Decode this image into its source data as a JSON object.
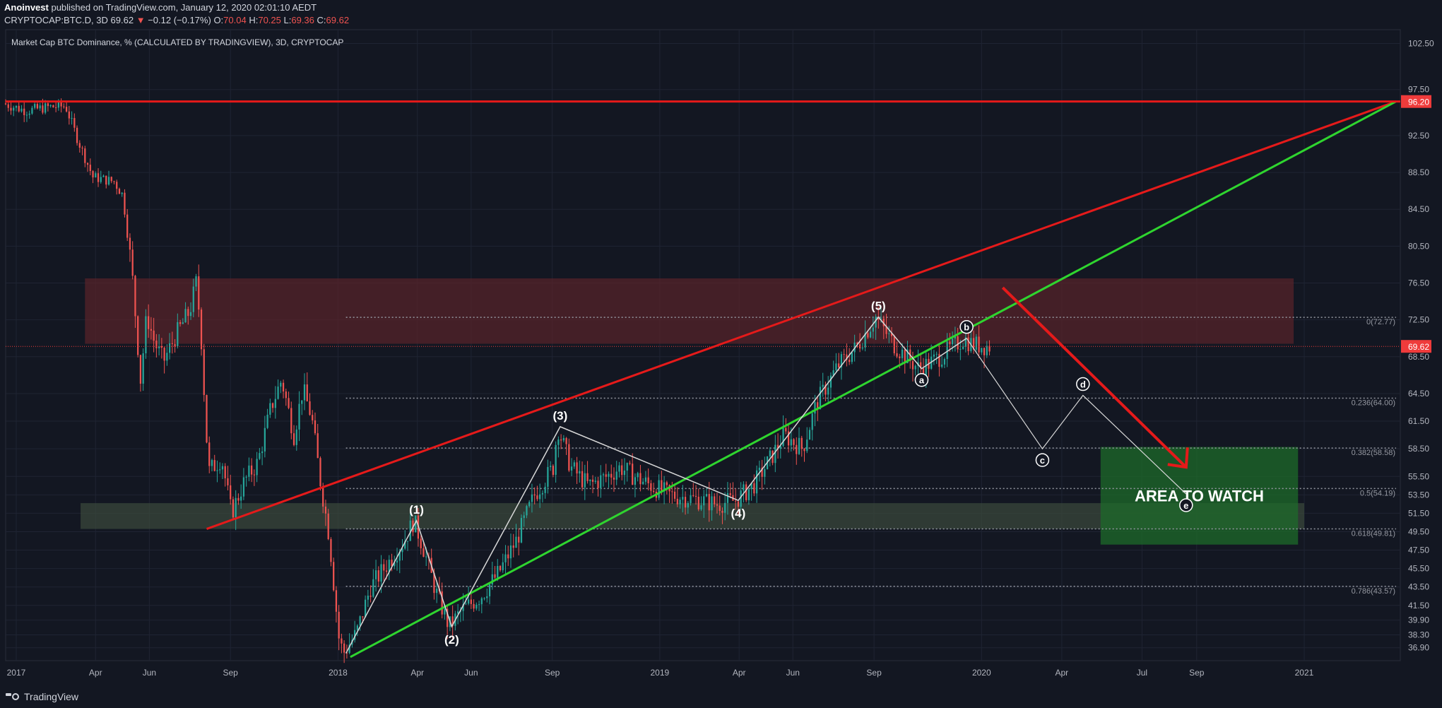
{
  "header": {
    "author": "Anoinvest",
    "published_text": "published on TradingView.com, January 12, 2020 02:01:10 AEDT",
    "symbol": "CRYPTOCAP:BTC.D, 3D",
    "last": "69.62",
    "change_arrow": "▼",
    "change": "−0.12 (−0.17%)",
    "o_label": "O:",
    "o_value": "70.04",
    "h_label": "H:",
    "h_value": "70.25",
    "l_label": "L:",
    "l_value": "69.36",
    "c_label": "C:",
    "c_value": "69.62"
  },
  "footer": {
    "brand": "TradingView"
  },
  "colors": {
    "background": "#131722",
    "grid": "#1f2433",
    "up_candle": "#26a69a",
    "down_candle": "#ef5350",
    "red_line": "#e51a1a",
    "green_line": "#2fd52f",
    "price_tag": "#ef3b3b"
  },
  "chart_data": {
    "type": "candlestick",
    "title": "Market Cap BTC Dominance, % (CALCULATED BY TRADINGVIEW), 3D, CRYPTOCAP",
    "interval": "3D",
    "x_axis": {
      "range": [
        "2016-12-20",
        "2021-04-20"
      ],
      "ticks": [
        {
          "date": "2017-01-01",
          "label": "2017"
        },
        {
          "date": "2017-04-01",
          "label": "Apr"
        },
        {
          "date": "2017-06-01",
          "label": "Jun"
        },
        {
          "date": "2017-09-01",
          "label": "Sep"
        },
        {
          "date": "2018-01-01",
          "label": "2018"
        },
        {
          "date": "2018-04-01",
          "label": "Apr"
        },
        {
          "date": "2018-06-01",
          "label": "Jun"
        },
        {
          "date": "2018-09-01",
          "label": "Sep"
        },
        {
          "date": "2019-01-01",
          "label": "2019"
        },
        {
          "date": "2019-04-01",
          "label": "Apr"
        },
        {
          "date": "2019-06-01",
          "label": "Jun"
        },
        {
          "date": "2019-09-01",
          "label": "Sep"
        },
        {
          "date": "2020-01-01",
          "label": "2020"
        },
        {
          "date": "2020-04-01",
          "label": "Apr"
        },
        {
          "date": "2020-07-01",
          "label": "Jul"
        },
        {
          "date": "2020-09-01",
          "label": "Sep"
        },
        {
          "date": "2021-01-01",
          "label": "2021"
        }
      ]
    },
    "y_axis": {
      "range": [
        35.5,
        104.0
      ],
      "ticks": [
        "102.50",
        "97.50",
        "92.50",
        "88.50",
        "84.50",
        "80.50",
        "76.50",
        "72.50",
        "68.50",
        "64.50",
        "61.50",
        "58.50",
        "55.50",
        "53.50",
        "51.50",
        "49.50",
        "47.50",
        "45.50",
        "43.50",
        "41.50",
        "39.90",
        "38.30",
        "36.90"
      ]
    },
    "price_path": [
      [
        "2016-12-20",
        96.0
      ],
      [
        "2017-01-15",
        95.2
      ],
      [
        "2017-02-10",
        95.6
      ],
      [
        "2017-03-01",
        95.7
      ],
      [
        "2017-03-15",
        92.0
      ],
      [
        "2017-04-01",
        88.0
      ],
      [
        "2017-04-25",
        87.5
      ],
      [
        "2017-05-05",
        86.0
      ],
      [
        "2017-05-15",
        78.0
      ],
      [
        "2017-05-25",
        66.0
      ],
      [
        "2017-06-01",
        73.0
      ],
      [
        "2017-06-10",
        70.0
      ],
      [
        "2017-06-20",
        68.0
      ],
      [
        "2017-07-05",
        71.0
      ],
      [
        "2017-07-20",
        73.5
      ],
      [
        "2017-07-27",
        76.5
      ],
      [
        "2017-08-01",
        72.0
      ],
      [
        "2017-08-10",
        56.0
      ],
      [
        "2017-08-25",
        57.5
      ],
      [
        "2017-09-05",
        51.5
      ],
      [
        "2017-09-20",
        55.0
      ],
      [
        "2017-10-05",
        57.0
      ],
      [
        "2017-10-20",
        63.0
      ],
      [
        "2017-11-01",
        66.0
      ],
      [
        "2017-11-15",
        60.0
      ],
      [
        "2017-11-25",
        65.0
      ],
      [
        "2017-12-05",
        62.0
      ],
      [
        "2017-12-15",
        55.0
      ],
      [
        "2017-12-25",
        49.0
      ],
      [
        "2018-01-05",
        38.0
      ],
      [
        "2018-01-10",
        36.3
      ],
      [
        "2018-01-25",
        38.5
      ],
      [
        "2018-02-10",
        43.5
      ],
      [
        "2018-03-01",
        46.0
      ],
      [
        "2018-03-20",
        48.5
      ],
      [
        "2018-03-31",
        50.7
      ],
      [
        "2018-04-10",
        48.0
      ],
      [
        "2018-04-25",
        43.0
      ],
      [
        "2018-05-10",
        39.2
      ],
      [
        "2018-05-25",
        41.0
      ],
      [
        "2018-06-15",
        42.5
      ],
      [
        "2018-07-05",
        45.0
      ],
      [
        "2018-07-25",
        48.5
      ],
      [
        "2018-08-15",
        53.5
      ],
      [
        "2018-09-05",
        56.5
      ],
      [
        "2018-09-10",
        60.9
      ],
      [
        "2018-09-25",
        56.5
      ],
      [
        "2018-10-15",
        54.5
      ],
      [
        "2018-11-05",
        55.5
      ],
      [
        "2018-11-20",
        56.5
      ],
      [
        "2018-12-15",
        55.0
      ],
      [
        "2019-01-15",
        53.5
      ],
      [
        "2019-02-15",
        53.0
      ],
      [
        "2019-03-10",
        52.5
      ],
      [
        "2019-03-31",
        52.9
      ],
      [
        "2019-04-20",
        54.5
      ],
      [
        "2019-05-10",
        57.5
      ],
      [
        "2019-05-25",
        60.0
      ],
      [
        "2019-06-15",
        58.5
      ],
      [
        "2019-07-01",
        63.5
      ],
      [
        "2019-07-25",
        67.5
      ],
      [
        "2019-08-15",
        69.5
      ],
      [
        "2019-09-06",
        72.8
      ],
      [
        "2019-09-25",
        70.0
      ],
      [
        "2019-10-10",
        68.5
      ],
      [
        "2019-10-25",
        67.2
      ],
      [
        "2019-11-10",
        68.0
      ],
      [
        "2019-11-25",
        69.0
      ],
      [
        "2019-12-15",
        70.5
      ],
      [
        "2019-12-25",
        69.8
      ],
      [
        "2020-01-12",
        69.62
      ]
    ],
    "last_price": "69.62",
    "resistance_level": "96.20",
    "zones": [
      {
        "kind": "resistance",
        "x": [
          "2017-03-20",
          "2020-12-20"
        ],
        "y": [
          69.9,
          77.0
        ],
        "color": "#5a2329"
      },
      {
        "kind": "support",
        "x": [
          "2017-03-15",
          "2021-01-01"
        ],
        "y": [
          49.8,
          52.6
        ],
        "color": "#3c4a3c"
      },
      {
        "kind": "target",
        "label": "AREA TO WATCH",
        "x": [
          "2020-05-15",
          "2020-12-25"
        ],
        "y": [
          48.1,
          58.7
        ],
        "color": "#1e6b2a"
      }
    ],
    "trendlines": [
      {
        "name": "red-upper-channel",
        "color": "#e51a1a",
        "points": [
          [
            "2017-08-05",
            49.8
          ],
          [
            "2021-04-15",
            96.2
          ]
        ]
      },
      {
        "name": "green-lower-channel",
        "color": "#2fd52f",
        "points": [
          [
            "2018-01-15",
            35.9
          ],
          [
            "2021-04-15",
            96.2
          ]
        ]
      },
      {
        "name": "red-horizontal-resistance",
        "color": "#e51a1a",
        "points": [
          [
            "2016-12-20",
            96.2
          ],
          [
            "2021-04-20",
            96.2
          ]
        ]
      }
    ],
    "elliott_waves": [
      {
        "label": "(1)",
        "date": "2018-03-31",
        "value": 50.7,
        "pos": "above"
      },
      {
        "label": "(2)",
        "date": "2018-05-10",
        "value": 39.2,
        "pos": "below"
      },
      {
        "label": "(3)",
        "date": "2018-09-10",
        "value": 60.9,
        "pos": "above"
      },
      {
        "label": "(4)",
        "date": "2019-03-31",
        "value": 52.9,
        "pos": "below"
      },
      {
        "label": "(5)",
        "date": "2019-09-06",
        "value": 72.8,
        "pos": "above"
      }
    ],
    "wave_path": [
      [
        "2018-01-10",
        36.3
      ],
      [
        "2018-03-31",
        50.7
      ],
      [
        "2018-05-10",
        39.2
      ],
      [
        "2018-09-10",
        60.9
      ],
      [
        "2019-03-31",
        52.9
      ],
      [
        "2019-09-06",
        72.8
      ],
      [
        "2019-10-25",
        67.2
      ],
      [
        "2019-12-15",
        70.5
      ]
    ],
    "projection_path": [
      [
        "2019-12-15",
        70.5
      ],
      [
        "2020-03-10",
        58.5
      ],
      [
        "2020-04-25",
        64.3
      ],
      [
        "2020-08-20",
        53.6
      ]
    ],
    "wave_points": [
      {
        "label": "a",
        "date": "2019-10-25",
        "value": 67.2,
        "pos": "below"
      },
      {
        "label": "b",
        "date": "2019-12-15",
        "value": 70.5,
        "pos": "above"
      },
      {
        "label": "c",
        "date": "2020-03-10",
        "value": 58.5,
        "pos": "below"
      },
      {
        "label": "d",
        "date": "2020-04-25",
        "value": 64.3,
        "pos": "above"
      },
      {
        "label": "e",
        "date": "2020-08-20",
        "value": 53.6,
        "pos": "below"
      }
    ],
    "fibonacci": [
      {
        "label": "0(72.77)",
        "value": 72.77
      },
      {
        "label": "0.236(64.00)",
        "value": 64.0
      },
      {
        "label": "0.382(58.58)",
        "value": 58.58
      },
      {
        "label": "0.5(54.19)",
        "value": 54.19
      },
      {
        "label": "0.618(49.81)",
        "value": 49.81
      },
      {
        "label": "0.786(43.57)",
        "value": 43.57
      }
    ],
    "fib_range": [
      "2018-01-10",
      "2020-12-20"
    ],
    "arrow": {
      "from": [
        "2020-01-25",
        76.0
      ],
      "to": [
        "2020-08-20",
        56.5
      ],
      "color": "#e51a1a"
    }
  }
}
